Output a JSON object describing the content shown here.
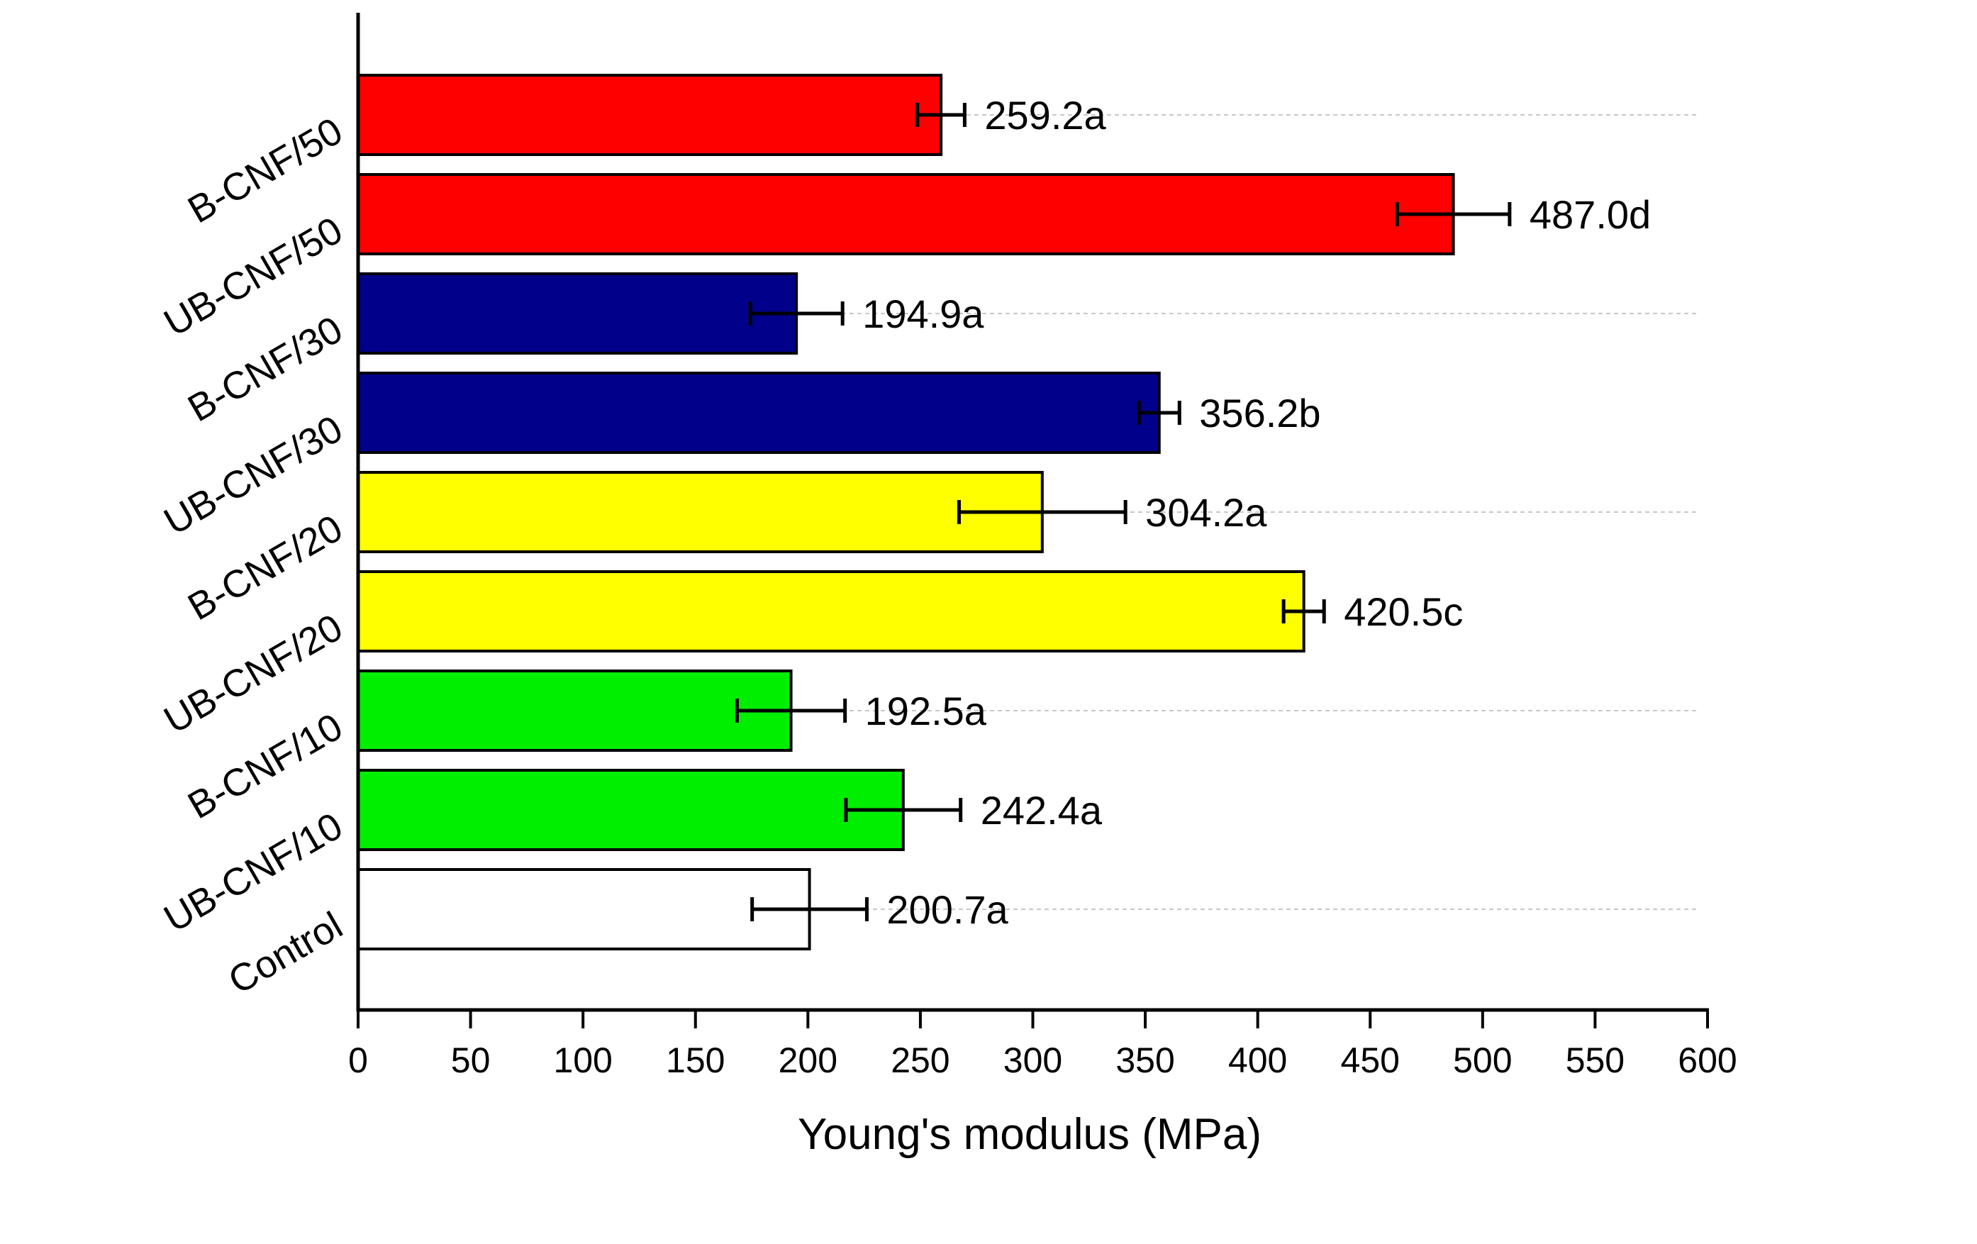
{
  "chart_data": {
    "type": "bar",
    "orientation": "horizontal",
    "title": "",
    "xlabel": "Young's modulus (MPa)",
    "ylabel": "",
    "xlim": [
      0,
      600
    ],
    "x_ticks": [
      "0",
      "50",
      "100",
      "150",
      "200",
      "250",
      "300",
      "350",
      "400",
      "450",
      "500",
      "550",
      "600"
    ],
    "x_tick_values": [
      0,
      50,
      100,
      150,
      200,
      250,
      300,
      350,
      400,
      450,
      500,
      550,
      600
    ],
    "grid": "dashed horizontal reference lines at every second bar",
    "legend": "none",
    "categories": [
      "Control",
      "UB-CNF/10",
      "B-CNF/10",
      "UB-CNF/20",
      "B-CNF/20",
      "UB-CNF/30",
      "B-CNF/30",
      "UB-CNF/50",
      "B-CNF/50"
    ],
    "values": [
      200.7,
      242.4,
      192.5,
      420.5,
      304.2,
      356.2,
      194.9,
      487.0,
      259.2
    ],
    "errors": [
      25.5,
      25.5,
      24.0,
      9.0,
      37.0,
      9.0,
      20.5,
      25.0,
      10.5
    ],
    "value_labels": [
      "200.7a",
      "242.4a",
      "192.5a",
      "420.5c",
      "304.2a",
      "356.2b",
      "194.9a",
      "487.0d",
      "259.2a"
    ],
    "bar_colors": [
      "#ffffff",
      "#00ee00",
      "#00ee00",
      "#ffff00",
      "#ffff00",
      "#00008b",
      "#00008b",
      "#ff0000",
      "#ff0000"
    ]
  }
}
